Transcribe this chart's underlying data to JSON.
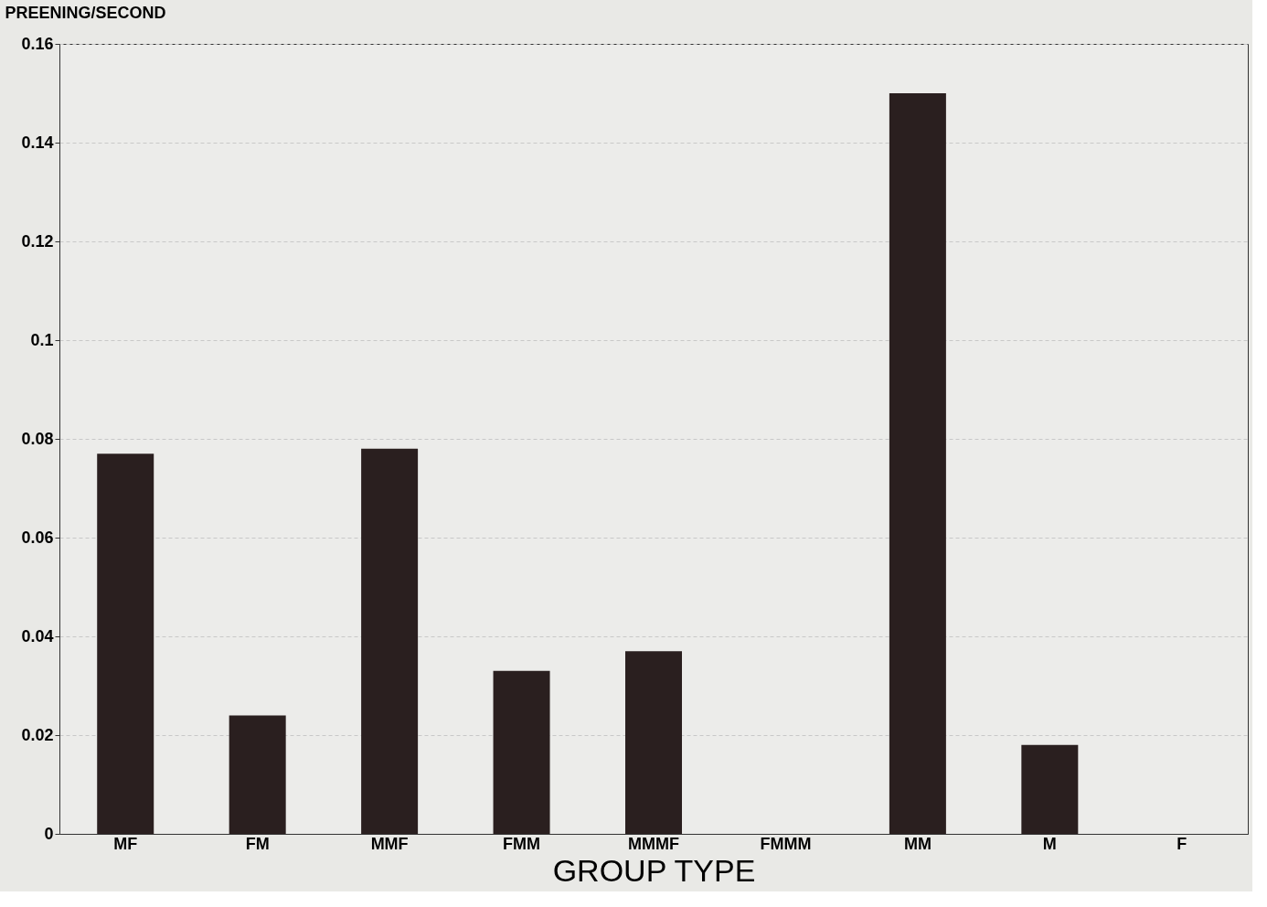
{
  "chart_data": {
    "type": "bar",
    "ylabel": "PREENING/SECOND",
    "xlabel": "GROUP TYPE",
    "categories": [
      "MF",
      "FM",
      "MMF",
      "FMM",
      "MMMF",
      "FMMM",
      "MM",
      "M",
      "F"
    ],
    "values": [
      0.077,
      0.024,
      0.078,
      0.033,
      0.037,
      0,
      0.15,
      0.018,
      0
    ],
    "color": "#2a1f1f",
    "ylim": [
      0,
      0.16
    ],
    "yticks": [
      0,
      0.02,
      0.04,
      0.06,
      0.08,
      {
        "value": 0.1,
        "label": "0.1"
      },
      0.12,
      0.14,
      0.16
    ],
    "grid": "y"
  }
}
